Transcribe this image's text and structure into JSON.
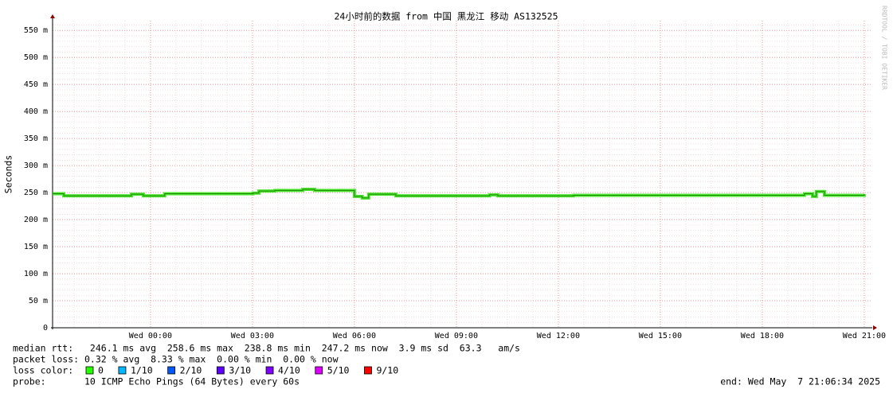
{
  "chart_data": {
    "type": "line",
    "title": "24小时前的数据 from 中国 黑龙江 移动 AS132525",
    "y_label": "Seconds",
    "watermark": "RRDTOOL / TOBI OETIKER",
    "x": [
      -2.88,
      -2.55,
      -0.56,
      -0.21,
      0.42,
      3.02,
      3.19,
      3.66,
      4.48,
      4.83,
      6.0,
      6.23,
      6.42,
      7.22,
      9.98,
      10.22,
      12.45,
      19.24,
      19.48,
      19.59,
      19.83,
      21.0
    ],
    "series": [
      {
        "color": "#22e000",
        "values": [
          0.248,
          0.244,
          0.247,
          0.244,
          0.248,
          0.249,
          0.253,
          0.254,
          0.256,
          0.254,
          0.243,
          0.24,
          0.247,
          0.244,
          0.246,
          0.244,
          0.245,
          0.248,
          0.243,
          0.252,
          0.245,
          0.2472
        ]
      }
    ],
    "xlim": [
      -2.88,
      21.19
    ],
    "xticks": [
      {
        "value": 0,
        "label": "Wed 00:00"
      },
      {
        "value": 3,
        "label": "Wed 03:00"
      },
      {
        "value": 6,
        "label": "Wed 06:00"
      },
      {
        "value": 9,
        "label": "Wed 09:00"
      },
      {
        "value": 12,
        "label": "Wed 12:00"
      },
      {
        "value": 15,
        "label": "Wed 15:00"
      },
      {
        "value": 18,
        "label": "Wed 18:00"
      },
      {
        "value": 21,
        "label": "Wed 21:00"
      }
    ],
    "ylim": [
      0,
      0.568
    ],
    "yticks": [
      0,
      {
        "value": 0.05,
        "label": "50 m"
      },
      {
        "value": 0.1,
        "label": "100 m"
      },
      {
        "value": 0.15,
        "label": "150 m"
      },
      {
        "value": 0.2,
        "label": "200 m"
      },
      {
        "value": 0.25,
        "label": "250 m"
      },
      {
        "value": 0.3,
        "label": "300 m"
      },
      {
        "value": 0.35,
        "label": "350 m"
      },
      {
        "value": 0.4,
        "label": "400 m"
      },
      {
        "value": 0.45,
        "label": "450 m"
      },
      {
        "value": 0.5,
        "label": "500 m"
      },
      {
        "value": 0.55,
        "label": "550 m"
      }
    ],
    "grid": true,
    "legend_lines": {
      "median_rtt": "median rtt:   246.1 ms avg  258.6 ms max  238.8 ms min  247.2 ms now  3.9 ms sd  63.3   am/s",
      "packet_loss": "packet loss: 0.32 % avg  8.33 % max  0.00 % min  0.00 % now",
      "loss_color": "loss color:",
      "probe": "probe:       10 ICMP Echo Pings (64 Bytes) every 60s",
      "end": "end: Wed May  7 21:06:34 2025"
    },
    "loss_colors": [
      {
        "label": "0",
        "color": "#26ff00"
      },
      {
        "label": "1/10",
        "color": "#00b8ff"
      },
      {
        "label": "2/10",
        "color": "#0059ff"
      },
      {
        "label": "3/10",
        "color": "#5e00ff"
      },
      {
        "label": "4/10",
        "color": "#7e00ff"
      },
      {
        "label": "5/10",
        "color": "#dd00ff"
      },
      {
        "label": "9/10",
        "color": "#ff0000"
      }
    ]
  }
}
